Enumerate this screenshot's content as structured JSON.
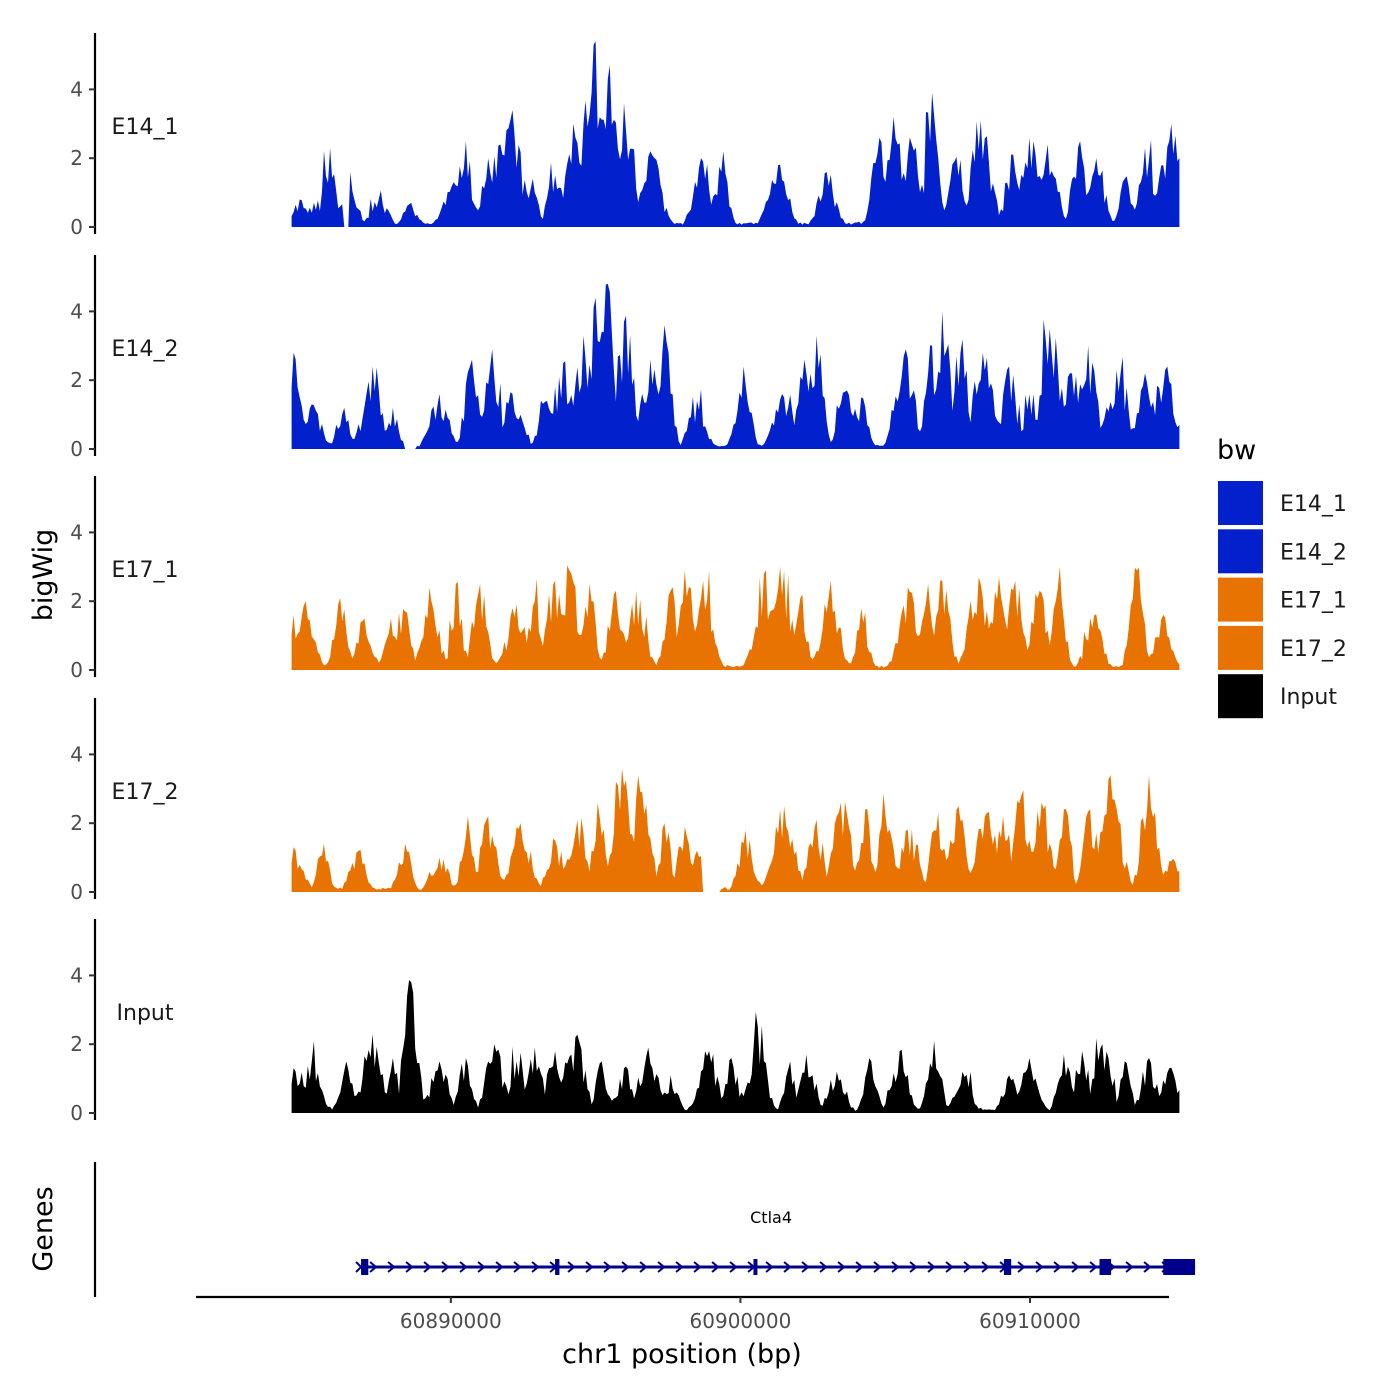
{
  "chart_data": {
    "type": "area",
    "ylabel": "bigWig",
    "xlabel": "chr1 position (bp)",
    "genes_label": "Genes",
    "ylim": [
      0,
      5.6
    ],
    "yticks": [
      0,
      2,
      4
    ],
    "ytick_labels": [
      "0",
      "2",
      "4"
    ],
    "xlim": [
      60881200,
      60914800
    ],
    "xticks": [
      60890000,
      60900000,
      60910000
    ],
    "xtick_labels": [
      "60890000",
      "60900000",
      "60910000"
    ],
    "signal_range": [
      60884500,
      60915200
    ],
    "legend": {
      "title": "bw",
      "entries": [
        {
          "name": "E14_1",
          "color": "#0220CC"
        },
        {
          "name": "E14_2",
          "color": "#0220CC"
        },
        {
          "name": "E17_1",
          "color": "#E87300"
        },
        {
          "name": "E17_2",
          "color": "#E87300"
        },
        {
          "name": "Input",
          "color": "#000000"
        }
      ]
    },
    "series": [
      {
        "name": "E14_1",
        "color": "#0220CC",
        "seed": 11,
        "peaks": [
          [
            60884800,
            0.8
          ],
          [
            60885300,
            0.7
          ],
          [
            60885800,
            2.3
          ],
          [
            60886500,
            1.6
          ],
          [
            60887500,
            0.8
          ],
          [
            60888600,
            0.7
          ],
          [
            60890100,
            1.3
          ],
          [
            60890500,
            2.5
          ],
          [
            60891300,
            2.0
          ],
          [
            60891700,
            2.4
          ],
          [
            60892100,
            3.4
          ],
          [
            60892800,
            1.4
          ],
          [
            60893600,
            1.5
          ],
          [
            60894300,
            2.6
          ],
          [
            60894600,
            3.0
          ],
          [
            60895000,
            5.4
          ],
          [
            60895500,
            4.7
          ],
          [
            60896000,
            3.6
          ],
          [
            60896900,
            2.2
          ],
          [
            60898700,
            1.9
          ],
          [
            60899400,
            2.2
          ],
          [
            60901300,
            1.8
          ],
          [
            60903000,
            1.6
          ],
          [
            60904800,
            2.6
          ],
          [
            60905300,
            3.2
          ],
          [
            60905900,
            2.4
          ],
          [
            60906600,
            3.9
          ],
          [
            60907400,
            1.9
          ],
          [
            60908300,
            3.1
          ],
          [
            60909400,
            2.1
          ],
          [
            60910000,
            2.6
          ],
          [
            60910600,
            2.4
          ],
          [
            60911700,
            2.5
          ],
          [
            60912300,
            2.0
          ],
          [
            60913300,
            1.4
          ],
          [
            60914000,
            2.3
          ],
          [
            60914600,
            1.8
          ],
          [
            60914900,
            3.0
          ]
        ]
      },
      {
        "name": "E14_2",
        "color": "#0220CC",
        "seed": 23,
        "peaks": [
          [
            60884600,
            2.8
          ],
          [
            60885200,
            1.3
          ],
          [
            60886300,
            1.2
          ],
          [
            60887300,
            2.4
          ],
          [
            60888000,
            1.2
          ],
          [
            60889600,
            1.6
          ],
          [
            60890700,
            2.6
          ],
          [
            60891400,
            2.9
          ],
          [
            60892100,
            1.6
          ],
          [
            60893300,
            1.4
          ],
          [
            60893900,
            2.5
          ],
          [
            60894600,
            3.3
          ],
          [
            60895000,
            4.4
          ],
          [
            60895400,
            4.8
          ],
          [
            60896000,
            3.7
          ],
          [
            60896900,
            2.6
          ],
          [
            60897400,
            3.6
          ],
          [
            60898500,
            1.4
          ],
          [
            60900100,
            2.4
          ],
          [
            60901500,
            1.5
          ],
          [
            60902200,
            2.6
          ],
          [
            60902600,
            3.3
          ],
          [
            60903700,
            1.7
          ],
          [
            60904200,
            1.5
          ],
          [
            60905700,
            2.9
          ],
          [
            60906600,
            3.0
          ],
          [
            60907000,
            4.0
          ],
          [
            60907600,
            2.8
          ],
          [
            60908400,
            2.8
          ],
          [
            60909300,
            2.4
          ],
          [
            60910100,
            1.6
          ],
          [
            60910700,
            3.5
          ],
          [
            60911400,
            2.2
          ],
          [
            60912000,
            3.0
          ],
          [
            60913000,
            2.3
          ],
          [
            60914000,
            2.2
          ],
          [
            60914700,
            2.3
          ]
        ]
      },
      {
        "name": "E17_1",
        "color": "#E87300",
        "seed": 37,
        "peaks": [
          [
            60884600,
            1.6
          ],
          [
            60885000,
            2.0
          ],
          [
            60886200,
            2.1
          ],
          [
            60887000,
            1.5
          ],
          [
            60887900,
            1.5
          ],
          [
            60888400,
            1.7
          ],
          [
            60889300,
            2.0
          ],
          [
            60890200,
            2.5
          ],
          [
            60891000,
            2.5
          ],
          [
            60892300,
            1.9
          ],
          [
            60892900,
            2.0
          ],
          [
            60893600,
            2.6
          ],
          [
            60894100,
            2.9
          ],
          [
            60894800,
            2.5
          ],
          [
            60895700,
            2.3
          ],
          [
            60896400,
            2.3
          ],
          [
            60897600,
            2.3
          ],
          [
            60898100,
            2.9
          ],
          [
            60898700,
            2.6
          ],
          [
            60900800,
            2.8
          ],
          [
            60901400,
            3.0
          ],
          [
            60902100,
            2.1
          ],
          [
            60903100,
            2.6
          ],
          [
            60904200,
            1.8
          ],
          [
            60905800,
            2.4
          ],
          [
            60906500,
            2.5
          ],
          [
            60907000,
            2.6
          ],
          [
            60908200,
            2.7
          ],
          [
            60908900,
            2.7
          ],
          [
            60909500,
            2.6
          ],
          [
            60910300,
            2.3
          ],
          [
            60911000,
            3.0
          ],
          [
            60912200,
            1.6
          ],
          [
            60913700,
            2.9
          ],
          [
            60914600,
            1.6
          ]
        ]
      },
      {
        "name": "E17_2",
        "color": "#E87300",
        "seed": 41,
        "peaks": [
          [
            60884600,
            1.3
          ],
          [
            60885600,
            1.4
          ],
          [
            60886800,
            1.2
          ],
          [
            60888400,
            1.4
          ],
          [
            60889600,
            1.0
          ],
          [
            60890600,
            2.2
          ],
          [
            60891300,
            2.2
          ],
          [
            60892400,
            2.0
          ],
          [
            60893600,
            1.5
          ],
          [
            60894400,
            2.1
          ],
          [
            60895100,
            2.6
          ],
          [
            60895900,
            3.6
          ],
          [
            60896600,
            2.9
          ],
          [
            60897400,
            2.0
          ],
          [
            60898100,
            1.9
          ],
          [
            60898500,
            1.2
          ],
          [
            60900200,
            1.8
          ],
          [
            60901500,
            2.5
          ],
          [
            60902600,
            2.1
          ],
          [
            60903500,
            2.6
          ],
          [
            60904300,
            2.4
          ],
          [
            60905000,
            2.2
          ],
          [
            60905800,
            1.8
          ],
          [
            60906800,
            2.3
          ],
          [
            60907500,
            2.5
          ],
          [
            60908500,
            2.3
          ],
          [
            60909100,
            2.2
          ],
          [
            60909700,
            2.8
          ],
          [
            60910400,
            2.6
          ],
          [
            60911200,
            2.4
          ],
          [
            60912100,
            2.4
          ],
          [
            60912800,
            3.4
          ],
          [
            60914100,
            3.4
          ],
          [
            60914900,
            0.9
          ]
        ]
      },
      {
        "name": "Input",
        "color": "#000000",
        "seed": 53,
        "peaks": [
          [
            60884600,
            1.3
          ],
          [
            60885200,
            1.5
          ],
          [
            60886400,
            1.5
          ],
          [
            60887300,
            2.3
          ],
          [
            60888000,
            1.6
          ],
          [
            60888600,
            3.8
          ],
          [
            60889600,
            1.5
          ],
          [
            60890500,
            1.6
          ],
          [
            60891500,
            2.0
          ],
          [
            60892300,
            1.5
          ],
          [
            60892900,
            1.9
          ],
          [
            60893600,
            1.8
          ],
          [
            60894300,
            2.2
          ],
          [
            60895200,
            1.5
          ],
          [
            60896000,
            1.3
          ],
          [
            60896800,
            1.9
          ],
          [
            60897600,
            1.1
          ],
          [
            60898900,
            1.8
          ],
          [
            60899700,
            1.6
          ],
          [
            60900600,
            2.5
          ],
          [
            60901700,
            1.5
          ],
          [
            60902300,
            1.7
          ],
          [
            60903300,
            1.2
          ],
          [
            60904500,
            1.5
          ],
          [
            60905500,
            1.8
          ],
          [
            60906700,
            2.1
          ],
          [
            60907700,
            1.2
          ],
          [
            60909300,
            1.1
          ],
          [
            60910000,
            1.6
          ],
          [
            60911200,
            1.7
          ],
          [
            60911800,
            1.8
          ],
          [
            60912500,
            2.0
          ],
          [
            60913300,
            1.5
          ],
          [
            60914100,
            1.6
          ],
          [
            60914800,
            1.3
          ]
        ]
      }
    ],
    "gaps": [
      {
        "series": "E14_1",
        "from": 60886300,
        "to": 60886500
      },
      {
        "series": "E14_2",
        "from": 60888400,
        "to": 60888800
      },
      {
        "series": "E17_2",
        "from": 60898700,
        "to": 60899300
      }
    ],
    "gene": {
      "name": "Ctla4",
      "strand": "+",
      "start": 60886900,
      "end": 60915700,
      "exons": [
        {
          "start": 60886900,
          "end": 60887150
        },
        {
          "start": 60893600,
          "end": 60893750
        },
        {
          "start": 60900450,
          "end": 60900550
        },
        {
          "start": 60909100,
          "end": 60909350
        },
        {
          "start": 60912400,
          "end": 60912800
        },
        {
          "start": 60914600,
          "end": 60915700
        }
      ]
    }
  }
}
